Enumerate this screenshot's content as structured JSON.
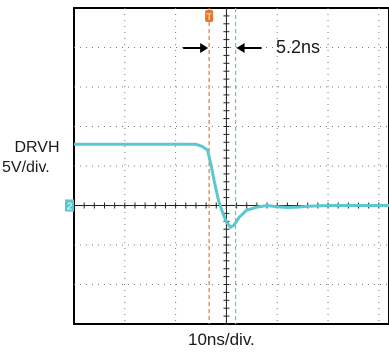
{
  "channel": {
    "label": "DRVH",
    "scale": "5V/div.",
    "marker": "2",
    "color": "#5bc7cf"
  },
  "timebase": "10ns/div.",
  "trigger": {
    "marker": "T",
    "color": "#e8742e"
  },
  "measurement": {
    "label": "5.2ns",
    "value_ns": 5.2
  },
  "chart_data": {
    "type": "line",
    "title": "",
    "xlabel": "10ns/div.",
    "ylabel": "DRVH 5V/div.",
    "grid": true,
    "xlim": [
      0,
      62
    ],
    "ylim": [
      -3,
      5
    ],
    "x_unit": "ns",
    "y_unit": "div",
    "cursors_ns": [
      26.6,
      31.8
    ],
    "series": [
      {
        "name": "DRVH",
        "x": [
          0,
          5,
          10,
          15,
          20,
          24,
          25.2,
          26.3,
          27,
          27.8,
          28.5,
          29.3,
          30,
          30.8,
          31.5,
          32.5,
          34,
          36,
          38,
          40,
          42,
          44,
          46,
          48,
          50,
          52,
          55,
          58,
          62
        ],
        "y": [
          1.55,
          1.55,
          1.55,
          1.55,
          1.55,
          1.55,
          1.5,
          1.4,
          1.0,
          0.5,
          0.1,
          -0.2,
          -0.42,
          -0.55,
          -0.5,
          -0.3,
          -0.12,
          -0.04,
          0.0,
          -0.03,
          -0.05,
          -0.04,
          -0.02,
          -0.01,
          0.0,
          0.0,
          0.0,
          0.0,
          0.0
        ]
      }
    ]
  }
}
